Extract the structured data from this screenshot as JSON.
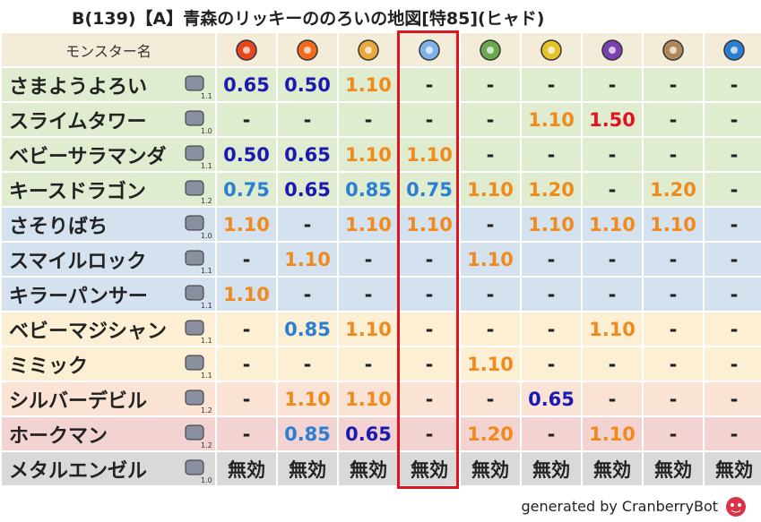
{
  "header": {
    "title": "B(139)【A】青森のリッキーののろいの地図[特85](ヒャド)"
  },
  "table": {
    "column_header": "モンスター名",
    "rows": [
      {
        "name": "さまようよろい",
        "rate": "1.1",
        "color": "#dfeccf",
        "values": [
          "0.65",
          "0.50",
          "1.10",
          "-",
          "-",
          "-",
          "-",
          "-",
          "-"
        ]
      },
      {
        "name": "スライムタワー",
        "rate": "1.0",
        "color": "#dfeccf",
        "values": [
          "-",
          "-",
          "-",
          "-",
          "-",
          "1.10",
          "1.50",
          "-",
          "-"
        ]
      },
      {
        "name": "ベビーサラマンダ",
        "rate": "1.1",
        "color": "#dfeccf",
        "values": [
          "0.50",
          "0.65",
          "1.10",
          "1.10",
          "-",
          "-",
          "-",
          "-",
          "-"
        ]
      },
      {
        "name": "キースドラゴン",
        "rate": "1.2",
        "color": "#dfeccf",
        "values": [
          "0.75",
          "0.65",
          "0.85",
          "0.75",
          "1.10",
          "1.20",
          "-",
          "1.20",
          "-"
        ]
      },
      {
        "name": "さそりばち",
        "rate": "1.0",
        "color": "#d4e1ef",
        "values": [
          "1.10",
          "-",
          "1.10",
          "1.10",
          "-",
          "1.10",
          "1.10",
          "1.10",
          "-"
        ]
      },
      {
        "name": "スマイルロック",
        "rate": "1.1",
        "color": "#d4e1ef",
        "values": [
          "-",
          "1.10",
          "-",
          "-",
          "1.10",
          "-",
          "-",
          "-",
          "-"
        ]
      },
      {
        "name": "キラーパンサー",
        "rate": "1.1",
        "color": "#d4e1ef",
        "values": [
          "1.10",
          "-",
          "-",
          "-",
          "-",
          "-",
          "-",
          "-",
          "-"
        ]
      },
      {
        "name": "ベビーマジシャン",
        "rate": "1.1",
        "color": "#fcefd3",
        "values": [
          "-",
          "0.85",
          "1.10",
          "-",
          "-",
          "-",
          "1.10",
          "-",
          "-"
        ]
      },
      {
        "name": "ミミック",
        "rate": "1.1",
        "color": "#fcefd3",
        "values": [
          "-",
          "-",
          "-",
          "-",
          "1.10",
          "-",
          "-",
          "-",
          "-"
        ]
      },
      {
        "name": "シルバーデビル",
        "rate": "1.2",
        "color": "#fae3d5",
        "values": [
          "-",
          "1.10",
          "1.10",
          "-",
          "-",
          "0.65",
          "-",
          "-",
          "-"
        ]
      },
      {
        "name": "ホークマン",
        "rate": "1.2",
        "color": "#f2d3d2",
        "values": [
          "-",
          "0.85",
          "0.65",
          "-",
          "1.20",
          "-",
          "1.10",
          "-",
          "-"
        ]
      },
      {
        "name": "メタルエンゼル",
        "rate": "1.0",
        "color": "#d9d9d9",
        "values": [
          "無効",
          "無効",
          "無効",
          "無効",
          "無効",
          "無効",
          "無効",
          "無効",
          "無効"
        ]
      }
    ]
  },
  "footer": {
    "credit": "generated by CranberryBot"
  }
}
